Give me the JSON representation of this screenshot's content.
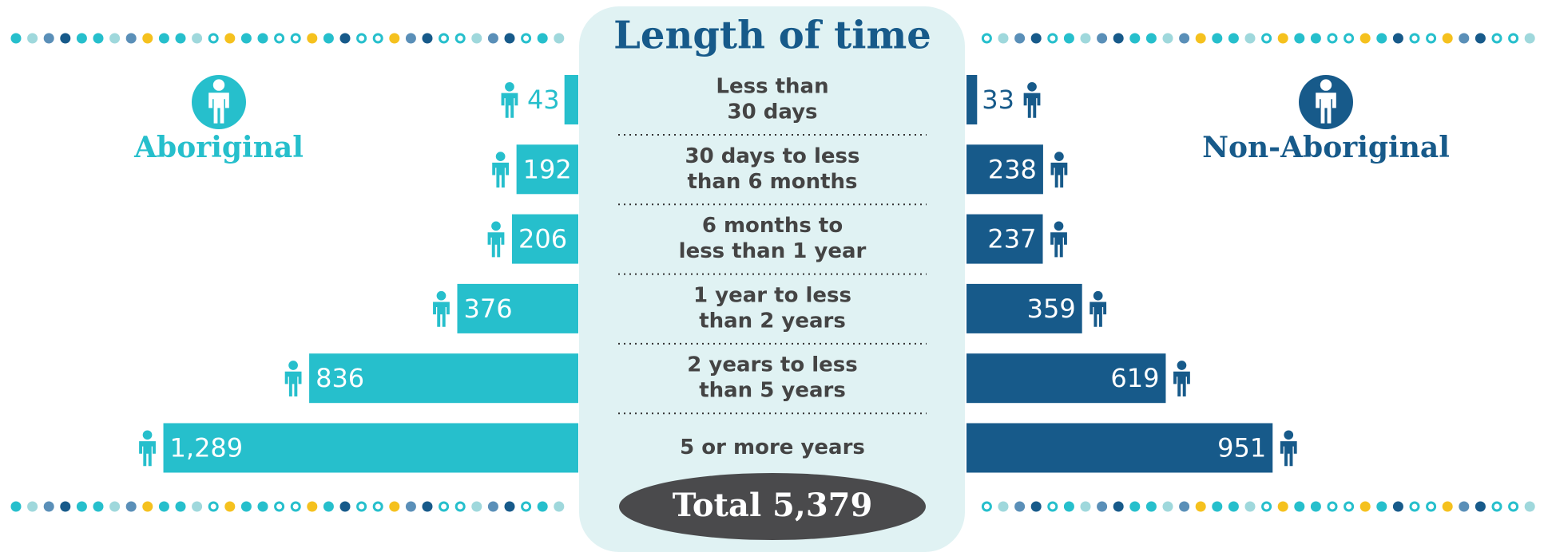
{
  "chart_data": {
    "type": "butterfly-bar",
    "title": "Length of time",
    "categories": [
      [
        "Less than",
        "30 days"
      ],
      [
        "30 days to less",
        "than 6 months"
      ],
      [
        "6 months to",
        "less than 1 year"
      ],
      [
        "1 year to less",
        "than 2 years"
      ],
      [
        "2 years to less",
        "than 5 years"
      ],
      [
        "5 or more years"
      ]
    ],
    "series": [
      {
        "name": "Aboriginal",
        "color": "#26bfcc",
        "values": [
          43,
          192,
          206,
          376,
          836,
          1289
        ],
        "value_labels": [
          "43",
          "192",
          "206",
          "376",
          "836",
          "1,289"
        ]
      },
      {
        "name": "Non-Aboriginal",
        "color": "#175a8a",
        "values": [
          33,
          238,
          237,
          359,
          619,
          951
        ],
        "value_labels": [
          "33",
          "238",
          "237",
          "359",
          "619",
          "951"
        ]
      }
    ],
    "annotation": "Total 5,379"
  }
}
